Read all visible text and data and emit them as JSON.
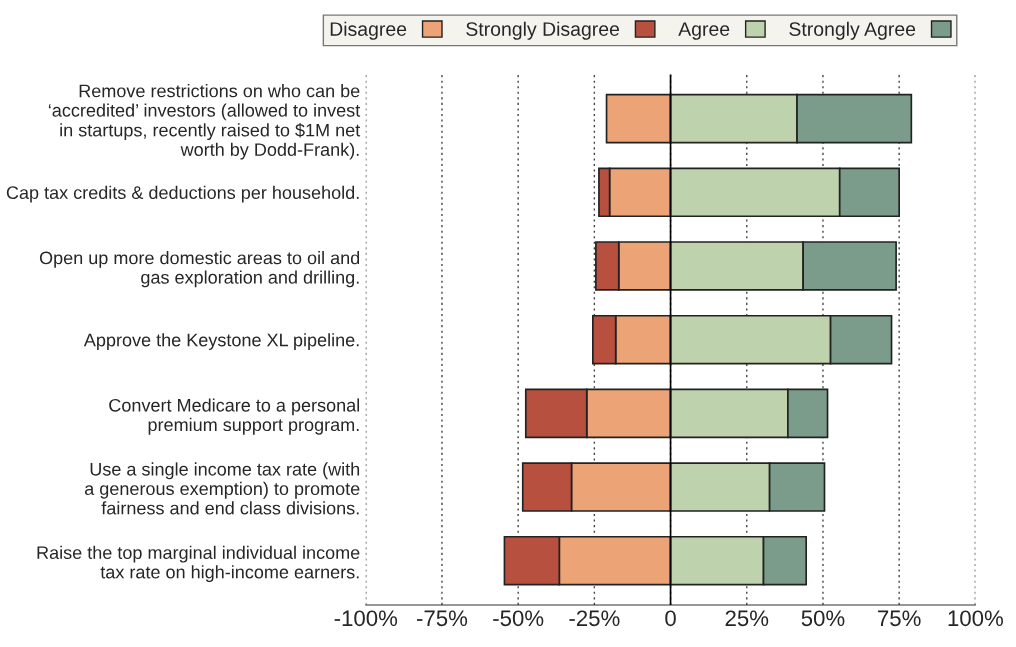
{
  "chart_data": {
    "type": "bar",
    "orientation": "horizontal",
    "stacked": true,
    "categories": [
      "Remove restrictions on who can be\n‘accredited’ investors (allowed to invest\nin startups, recently raised to $1M net\nworth by Dodd-Frank).",
      "Cap tax credits & deductions per household.",
      "Open up more domestic areas to oil and\ngas exploration and drilling.",
      "Approve the Keystone XL pipeline.",
      "Convert Medicare to a personal\npremium support program.",
      "Use a single income tax rate (with\na generous exemption) to promote\nfairness and end class divisions.",
      "Raise the top marginal individual income\ntax rate on high-income earners."
    ],
    "series": [
      {
        "name": "Disagree",
        "color": "#eca477",
        "values": [
          -21,
          -20,
          -17,
          -18,
          -27.5,
          -32.5,
          -36.5
        ]
      },
      {
        "name": "Strongly Disagree",
        "color": "#b85040",
        "values": [
          null,
          -3.5,
          -7.5,
          -7.5,
          -20,
          -16,
          -18
        ]
      },
      {
        "name": "Agree",
        "color": "#bed3ad",
        "values": [
          41.5,
          55.5,
          43.5,
          52.5,
          38.5,
          32.5,
          30.5
        ]
      },
      {
        "name": "Strongly Agree",
        "color": "#7b9c8b",
        "values": [
          37.5,
          19.5,
          30.5,
          20,
          13,
          18,
          14
        ]
      }
    ],
    "xlim": [
      -100,
      100
    ],
    "xticks": [
      {
        "value": -100,
        "label": "-100%"
      },
      {
        "value": -75,
        "label": "-75%"
      },
      {
        "value": -50,
        "label": "-50%"
      },
      {
        "value": -25,
        "label": "-25%"
      },
      0,
      {
        "value": 25,
        "label": "25%"
      },
      {
        "value": 50,
        "label": "50%"
      },
      {
        "value": 75,
        "label": "75%"
      },
      {
        "value": 100,
        "label": "100%"
      }
    ],
    "ref_lines": [
      {
        "axis": "x",
        "value": 0,
        "color": "#000000",
        "line_style": "solid"
      }
    ],
    "grid": "x",
    "legend": "top"
  }
}
